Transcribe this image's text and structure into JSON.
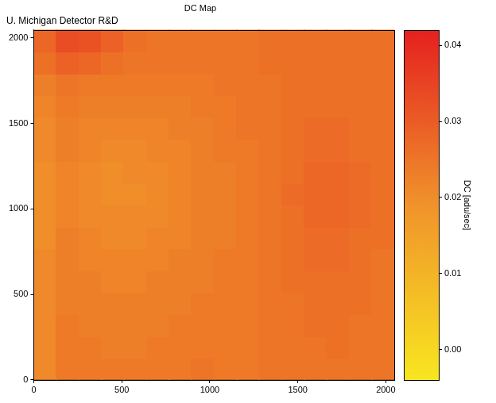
{
  "chart_data": {
    "type": "heatmap",
    "title": "DC Map",
    "subtitle": "U. Michigan Detector R&D",
    "x": [
      64,
      192,
      320,
      448,
      576,
      704,
      832,
      960,
      1088,
      1216,
      1344,
      1472,
      1600,
      1728,
      1856,
      1984
    ],
    "y": [
      64,
      192,
      320,
      448,
      576,
      704,
      832,
      960,
      1088,
      1216,
      1344,
      1472,
      1600,
      1728,
      1856,
      1984
    ],
    "cells": [
      [
        0.021,
        0.024,
        0.024,
        0.024,
        0.024,
        0.024,
        0.024,
        0.025,
        0.024,
        0.024,
        0.025,
        0.025,
        0.025,
        0.025,
        0.025,
        0.025
      ],
      [
        0.021,
        0.024,
        0.024,
        0.023,
        0.023,
        0.024,
        0.024,
        0.024,
        0.024,
        0.024,
        0.025,
        0.025,
        0.025,
        0.026,
        0.025,
        0.025
      ],
      [
        0.021,
        0.024,
        0.023,
        0.023,
        0.023,
        0.023,
        0.024,
        0.024,
        0.024,
        0.024,
        0.025,
        0.025,
        0.026,
        0.026,
        0.025,
        0.025
      ],
      [
        0.021,
        0.023,
        0.023,
        0.023,
        0.023,
        0.023,
        0.023,
        0.024,
        0.024,
        0.024,
        0.025,
        0.025,
        0.026,
        0.026,
        0.026,
        0.025
      ],
      [
        0.021,
        0.023,
        0.023,
        0.022,
        0.022,
        0.023,
        0.023,
        0.023,
        0.024,
        0.024,
        0.025,
        0.026,
        0.026,
        0.026,
        0.026,
        0.025
      ],
      [
        0.021,
        0.023,
        0.022,
        0.022,
        0.022,
        0.022,
        0.023,
        0.023,
        0.024,
        0.024,
        0.025,
        0.026,
        0.027,
        0.027,
        0.026,
        0.025
      ],
      [
        0.02,
        0.023,
        0.022,
        0.021,
        0.021,
        0.022,
        0.022,
        0.023,
        0.023,
        0.024,
        0.025,
        0.026,
        0.027,
        0.027,
        0.026,
        0.026
      ],
      [
        0.02,
        0.022,
        0.021,
        0.021,
        0.021,
        0.021,
        0.022,
        0.023,
        0.023,
        0.024,
        0.025,
        0.026,
        0.028,
        0.028,
        0.027,
        0.026
      ],
      [
        0.02,
        0.022,
        0.021,
        0.02,
        0.02,
        0.021,
        0.022,
        0.023,
        0.023,
        0.024,
        0.025,
        0.027,
        0.028,
        0.028,
        0.027,
        0.026
      ],
      [
        0.02,
        0.022,
        0.021,
        0.02,
        0.021,
        0.021,
        0.022,
        0.023,
        0.023,
        0.024,
        0.025,
        0.026,
        0.028,
        0.028,
        0.027,
        0.026
      ],
      [
        0.021,
        0.023,
        0.022,
        0.021,
        0.021,
        0.022,
        0.022,
        0.023,
        0.024,
        0.024,
        0.025,
        0.026,
        0.027,
        0.027,
        0.026,
        0.026
      ],
      [
        0.021,
        0.023,
        0.022,
        0.022,
        0.022,
        0.022,
        0.023,
        0.023,
        0.024,
        0.025,
        0.025,
        0.026,
        0.027,
        0.027,
        0.026,
        0.026
      ],
      [
        0.022,
        0.024,
        0.023,
        0.023,
        0.023,
        0.023,
        0.023,
        0.024,
        0.024,
        0.025,
        0.025,
        0.026,
        0.026,
        0.026,
        0.026,
        0.026
      ],
      [
        0.023,
        0.025,
        0.024,
        0.024,
        0.024,
        0.024,
        0.024,
        0.024,
        0.025,
        0.025,
        0.025,
        0.026,
        0.026,
        0.026,
        0.026,
        0.026
      ],
      [
        0.026,
        0.029,
        0.028,
        0.026,
        0.025,
        0.025,
        0.025,
        0.025,
        0.025,
        0.025,
        0.026,
        0.026,
        0.026,
        0.026,
        0.026,
        0.026
      ],
      [
        0.028,
        0.033,
        0.032,
        0.029,
        0.026,
        0.025,
        0.025,
        0.025,
        0.025,
        0.025,
        0.026,
        0.026,
        0.026,
        0.026,
        0.026,
        0.026
      ]
    ],
    "xlim": [
      0,
      2048
    ],
    "xticks": [
      0,
      500,
      1000,
      1500,
      2000
    ],
    "ylim": [
      0,
      2048
    ],
    "yticks": [
      0,
      500,
      1000,
      1500,
      2000
    ],
    "grid": false,
    "colorbar": {
      "label": "DC [adu/sec]",
      "range": [
        -0.004,
        0.042
      ],
      "ticks": [
        {
          "value": 0,
          "label": "0.00"
        },
        0.01,
        0.02,
        0.03,
        0.04
      ],
      "colors": [
        "#f8e620",
        "#f0932b",
        "#e5201f"
      ]
    }
  }
}
